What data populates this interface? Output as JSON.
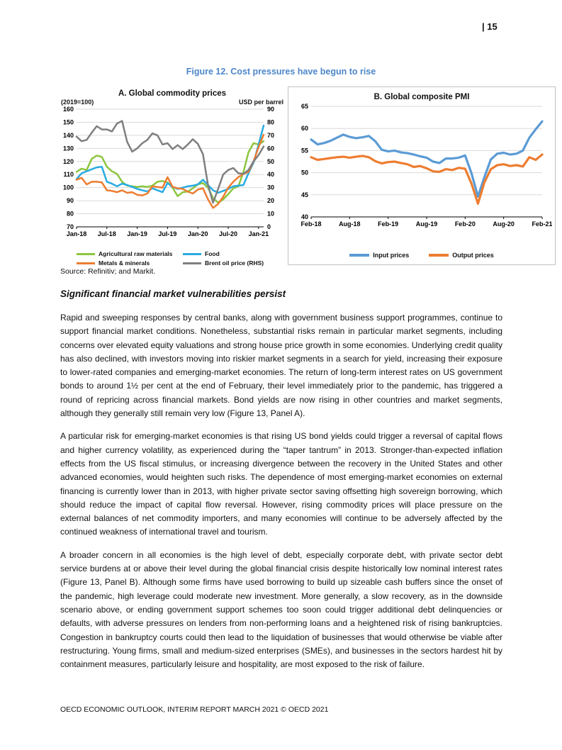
{
  "page": {
    "number": "| 15",
    "footer": "OECD ECONOMIC OUTLOOK, INTERIM REPORT MARCH 2021 © OECD 2021"
  },
  "figure": {
    "title": "Figure 12. Cost pressures have begun to rise",
    "title_color": "#4D87C9",
    "source": "Source: Refinitiv; and Markit."
  },
  "section": {
    "heading": "Significant financial market vulnerabilities persist",
    "paragraphs": [
      "Rapid and sweeping responses by central banks, along with government business support programmes, continue to support financial market conditions. Nonetheless, substantial risks remain in particular market segments, including concerns over elevated equity valuations and strong house price growth in some economies. Underlying credit quality has also declined, with investors moving into riskier market segments in a search for yield, increasing their exposure to lower-rated companies and emerging-market economies. The return of long-term interest rates on US government bonds to around 1½ per cent at the end of February, their level immediately prior to the pandemic, has triggered a round of repricing across financial markets. Bond yields are now rising in other countries and market segments, although they generally still remain very low (Figure 13, Panel A).",
      "A particular risk for emerging-market economies is that rising US bond yields could trigger a reversal of capital flows and higher currency volatility, as experienced during the “taper tantrum” in 2013. Stronger-than-expected inflation effects from the US fiscal stimulus, or increasing divergence between the recovery in the United States and other advanced economies, would heighten such risks. The dependence of most emerging-market economies on external financing is currently lower than in 2013, with higher private sector saving offsetting high sovereign borrowing, which should reduce the impact of capital flow reversal. However, rising commodity prices will place pressure on the external balances of net commodity importers, and many economies will continue to be adversely affected by the continued weakness of international travel and tourism.",
      "A broader concern in all economies is the high level of debt, especially corporate debt, with private sector debt service burdens at or above their level during the global financial crisis despite historically low nominal interest rates (Figure 13, Panel B). Although some firms have used borrowing to build up sizeable cash buffers since the onset of the pandemic, high leverage could moderate new investment. More generally, a slow recovery, as in the downside scenario above, or ending government support schemes too soon could trigger additional debt delinquencies or defaults, with adverse pressures on lenders from non-performing loans and a heightened risk of rising bankruptcies. Congestion in bankruptcy courts could then lead to the liquidation of businesses that would otherwise be viable after restructuring. Young firms, small and medium-sized enterprises (SMEs), and businesses in the sectors hardest hit by containment measures, particularly leisure and hospitality, are most exposed to the risk of failure."
    ]
  },
  "chart_data": [
    {
      "type": "line",
      "title": "A. Global commodity prices",
      "left_axis": {
        "label": "(2019=100)",
        "lim": [
          70,
          160
        ],
        "ticks": [
          70,
          80,
          90,
          100,
          110,
          120,
          130,
          140,
          150,
          160
        ]
      },
      "right_axis": {
        "label": "USD per barrel",
        "lim": [
          0,
          90
        ],
        "ticks": [
          0,
          10,
          20,
          30,
          40,
          50,
          60,
          70,
          80,
          90
        ]
      },
      "x": {
        "ticklabels": [
          "Jan-18",
          "Jul-18",
          "Jan-19",
          "Jul-19",
          "Jan-20",
          "Jul-20",
          "Jan-21"
        ],
        "tick_indices": [
          0,
          6,
          12,
          18,
          24,
          30,
          36
        ],
        "start": "Jan-2018",
        "end": "Feb-2021",
        "frequency": "monthly"
      },
      "grid": "horizontal",
      "series": [
        {
          "name": "Agricultural raw materials",
          "color": "#8CC63F",
          "axis": "left",
          "values": [
            112,
            114.5,
            113.5,
            122,
            124.5,
            123.5,
            116,
            112.5,
            110.5,
            104.5,
            101.5,
            101,
            100.5,
            101,
            100.5,
            101.5,
            104.5,
            105,
            104,
            100,
            93.5,
            96.5,
            97,
            99.5,
            102.5,
            103.5,
            100,
            92,
            88.5,
            91,
            95,
            99.5,
            101,
            112,
            127,
            134,
            133,
            135.5
          ]
        },
        {
          "name": "Food",
          "color": "#29ABE2",
          "axis": "left",
          "values": [
            106.5,
            111,
            112.5,
            114,
            115.5,
            116,
            104.5,
            103,
            101,
            103,
            102,
            100.5,
            99,
            98,
            97,
            99.5,
            98,
            96.5,
            103.5,
            100.5,
            99,
            100,
            101,
            101.5,
            102.5,
            106,
            102,
            98,
            96,
            97.5,
            99,
            101,
            101.5,
            102,
            111,
            119,
            133,
            147.5
          ]
        },
        {
          "name": "Metals & minerals",
          "color": "#ED7D31",
          "axis": "left",
          "values": [
            106,
            107.5,
            102.5,
            104.5,
            104.5,
            104,
            98,
            97.5,
            96.5,
            98,
            96,
            96.5,
            94.5,
            94,
            95.5,
            101,
            100.5,
            100,
            108,
            100.5,
            99.5,
            99,
            97,
            95.5,
            98.5,
            99.5,
            91,
            84.5,
            87.5,
            93,
            100,
            104.5,
            108,
            110.5,
            112,
            120,
            131,
            140.5
          ]
        },
        {
          "name": "Brent oil price (RHS)",
          "color": "#7F7F7F",
          "axis": "right",
          "values": [
            69,
            65.5,
            66.5,
            72,
            77,
            74.5,
            74.5,
            73,
            79,
            81,
            65,
            57.5,
            60,
            64,
            66.5,
            71.5,
            70,
            63,
            64,
            59.5,
            62.5,
            59.5,
            63,
            67,
            63.5,
            55.5,
            32,
            18.5,
            29,
            40,
            43.5,
            45,
            41,
            40.5,
            43.5,
            50,
            55,
            61.5
          ]
        }
      ]
    },
    {
      "type": "line",
      "title": "B. Global composite PMI",
      "left_axis": {
        "lim": [
          40,
          65
        ],
        "ticks": [
          40,
          45,
          50,
          55,
          60,
          65
        ]
      },
      "x": {
        "ticklabels": [
          "Feb-18",
          "Aug-18",
          "Feb-19",
          "Aug-19",
          "Feb-20",
          "Aug-20",
          "Feb-21"
        ],
        "tick_indices": [
          0,
          6,
          12,
          18,
          24,
          30,
          36
        ],
        "start": "Feb-2018",
        "end": "Feb-2021",
        "frequency": "monthly"
      },
      "grid": "horizontal",
      "series": [
        {
          "name": "Input prices",
          "color": "#5B9BD5",
          "axis": "left",
          "values": [
            57.5,
            56.4,
            56.7,
            57.2,
            57.9,
            58.6,
            58.1,
            57.8,
            58.0,
            58.3,
            57.1,
            55.2,
            54.8,
            55.0,
            54.6,
            54.4,
            54.1,
            53.7,
            53.4,
            52.5,
            52.2,
            53.2,
            53.2,
            53.4,
            53.9,
            49.8,
            44.6,
            49.0,
            53.0,
            54.3,
            54.5,
            54.1,
            54.3,
            55.0,
            57.9,
            59.8,
            61.6
          ]
        },
        {
          "name": "Output prices",
          "color": "#ED7D31",
          "axis": "left",
          "values": [
            53.5,
            52.9,
            53.1,
            53.3,
            53.5,
            53.6,
            53.4,
            53.6,
            53.8,
            53.5,
            52.6,
            52.1,
            52.4,
            52.5,
            52.2,
            51.9,
            51.3,
            51.5,
            51.0,
            50.3,
            50.2,
            50.8,
            50.6,
            51.1,
            50.9,
            47.5,
            43.0,
            47.8,
            50.8,
            51.7,
            51.9,
            51.5,
            51.7,
            51.4,
            53.5,
            52.9,
            54.1
          ]
        }
      ]
    }
  ]
}
